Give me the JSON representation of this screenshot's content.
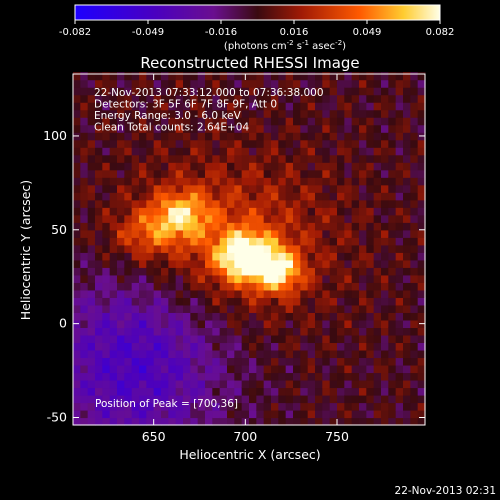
{
  "chart_data": {
    "type": "heatmap",
    "title": "Reconstructed RHESSI Image",
    "xlabel": "Heliocentric X (arcsec)",
    "ylabel": "Heliocentric Y (arcsec)",
    "xlim": [
      606,
      798
    ],
    "ylim": [
      -54,
      133
    ],
    "xticks": [
      650,
      700,
      750
    ],
    "yticks": [
      -50,
      0,
      50,
      100
    ],
    "colorbar": {
      "ticks": [
        "-0.082",
        "-0.049",
        "-0.016",
        "0.016",
        "0.049",
        "0.082"
      ],
      "units": "(photons cm<sup>-2</sup> s<sup>-1</sup> asec<sup>-2</sup>)",
      "units_main": "(photons cm",
      "units_sup1": "-2",
      "units_mid": " s",
      "units_sup2": "-1",
      "units_mid2": " asec",
      "units_sup3": "-2",
      "units_end": ")",
      "colormap": "blue-purple-red-yellow-white",
      "min": -0.082,
      "max": 0.082
    },
    "info_lines": [
      "22-Nov-2013 07:33:12.000 to 07:36:38.000",
      "Detectors: 3F 5F 6F 7F 8F 9F, Att 0",
      "Energy Range: 3.0 - 6.0 keV",
      "Clean     Total counts: 2.64E+04"
    ],
    "peak_text": "Position of Peak = [700,36]",
    "peak_position": [
      700,
      36
    ],
    "timestamp": "22-Nov-2013 02:31",
    "source": {
      "components": [
        {
          "x": 665,
          "y": 58,
          "amp": 0.052,
          "sx": 11,
          "sy": 9
        },
        {
          "x": 700,
          "y": 36,
          "amp": 0.082,
          "sx": 11,
          "sy": 9
        },
        {
          "x": 718,
          "y": 28,
          "amp": 0.06,
          "sx": 9,
          "sy": 8
        },
        {
          "x": 645,
          "y": 48,
          "amp": 0.03,
          "sx": 12,
          "sy": 9
        }
      ],
      "halo_amp": 0.032,
      "negative_region": {
        "x": 640,
        "y": -20,
        "amp": -0.045,
        "sx": 35,
        "sy": 35
      }
    }
  }
}
